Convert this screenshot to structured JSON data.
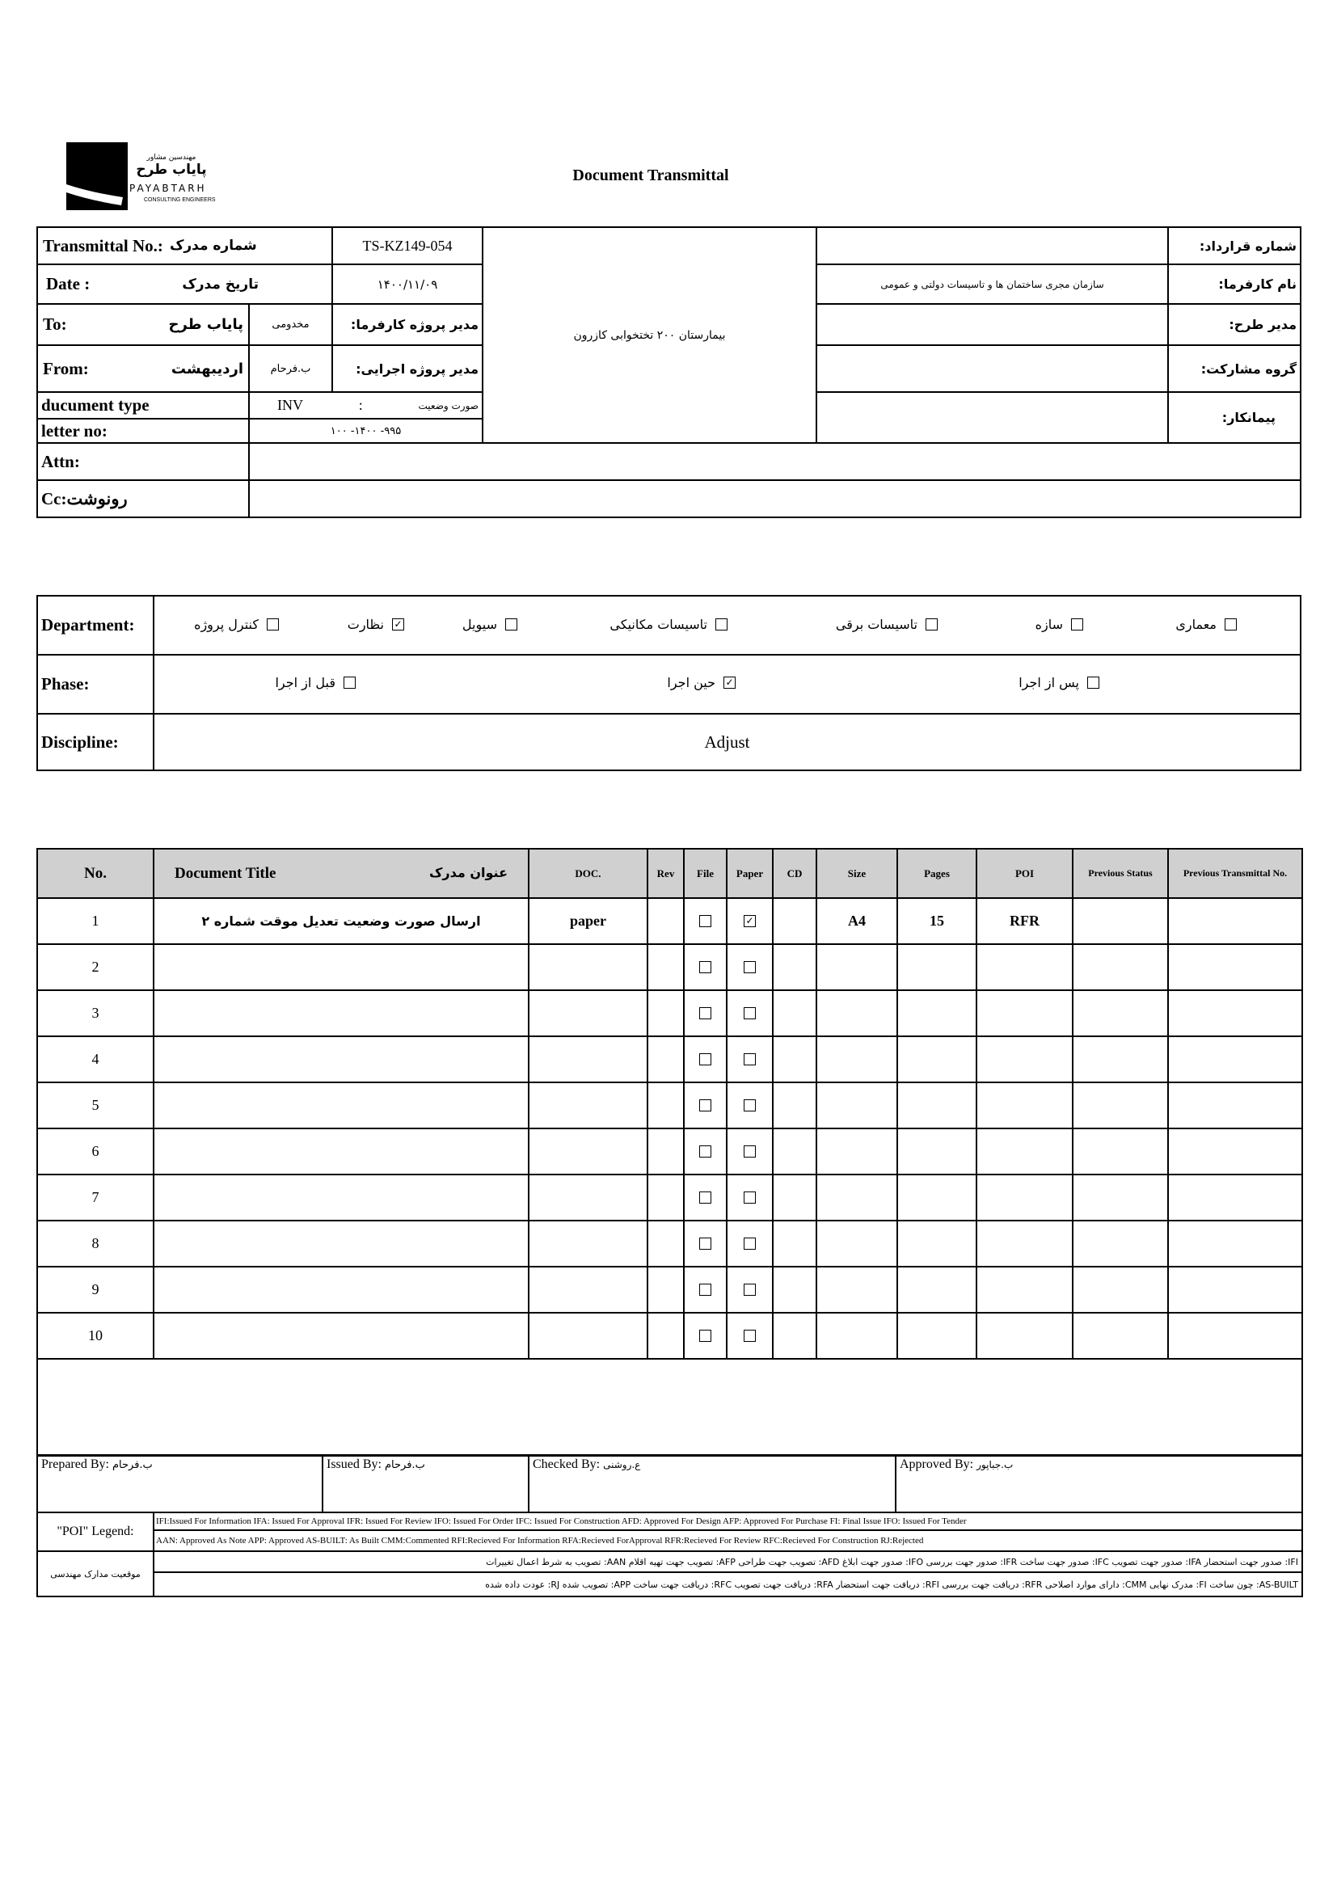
{
  "logo": {
    "company_fa": "پایاب طرح",
    "subtitle_fa": "مهندسین مشاور",
    "company_en": "PAYABTARH",
    "tagline": "CONSULTING ENGINEERS"
  },
  "title": "Document Transmittal",
  "header": {
    "transmittal_label": "Transmittal No.:",
    "transmittal_label_fa": "شماره مدرک",
    "transmittal_no": "TS-KZ149-054",
    "date_label": "Date :",
    "date_label_fa": "تاریخ مدرک",
    "date": "۱۴۰۰/۱۱/۰۹",
    "to_label": "To:",
    "to_value": "پایاب طرح",
    "client_pm_name": "مخدومی",
    "client_pm_label": "مدیر پروژه کارفرما:",
    "from_label": "From:",
    "from_value": "اردیبهشت",
    "exec_pm_name": "ب.فرحام",
    "exec_pm_label": "مدیر پروژه اجرایی:",
    "doctype_label": "ducument type",
    "doctype_code": "INV",
    "doctype_sep": ":",
    "doctype_fa": "صورت وضعیت",
    "letter_label": "letter no:",
    "letter_no": "۹۹۵- ۱۴۰۰- ۱۰۰",
    "attn_label": "Attn:",
    "cc_label": "Cc:رونوشت",
    "project": "بیمارستان ۲۰۰ تختخوابی کازرون",
    "contract_label": "شماره قرارداد:",
    "contract_value": "",
    "employer_label": "نام کارفرما:",
    "employer_value": "سازمان مجری ساختمان ها و تاسیسات دولتی و عمومی",
    "plan_manager_label": "مدیر طرح:",
    "participation_label": "گروه مشارکت:",
    "contractor_label": "پیمانکار:"
  },
  "department": {
    "label": "Department:",
    "options": [
      {
        "label": "معماری",
        "checked": false
      },
      {
        "label": "سازه",
        "checked": false
      },
      {
        "label": "تاسیسات برقی",
        "checked": false
      },
      {
        "label": "تاسیسات مکانیکی",
        "checked": false
      },
      {
        "label": "سیویل",
        "checked": false
      },
      {
        "label": "نظارت",
        "checked": true
      },
      {
        "label": "کنترل پروژه",
        "checked": false
      }
    ]
  },
  "phase": {
    "label": "Phase:",
    "options": [
      {
        "label": "پس از اجرا",
        "checked": false
      },
      {
        "label": "حین اجرا",
        "checked": true
      },
      {
        "label": "قبل از اجرا",
        "checked": false
      }
    ]
  },
  "discipline": {
    "label": "Discipline:",
    "value": "Adjust"
  },
  "docs": {
    "headers": {
      "no": "No.",
      "title": "Document Title",
      "title_fa": "عنوان مدرک",
      "doc": "DOC.",
      "rev": "Rev",
      "file": "File",
      "paper": "Paper",
      "cd": "CD",
      "size": "Size",
      "pages": "Pages",
      "poi": "POI",
      "prev_status": "Previous Status",
      "prev_transmittal": "Previous Transmittal No."
    },
    "rows": [
      {
        "no": "1",
        "title": "ارسال صورت وضعیت تعدیل موقت شماره ۲",
        "doc": "paper",
        "rev": "",
        "file": false,
        "paper": true,
        "cd": "",
        "size": "A4",
        "pages": "15",
        "poi": "RFR",
        "prev_status": "",
        "prev_transmittal": ""
      },
      {
        "no": "2",
        "file": false,
        "paper": false
      },
      {
        "no": "3",
        "file": false,
        "paper": false
      },
      {
        "no": "4",
        "file": false,
        "paper": false
      },
      {
        "no": "5",
        "file": false,
        "paper": false
      },
      {
        "no": "6",
        "file": false,
        "paper": false
      },
      {
        "no": "7",
        "file": false,
        "paper": false
      },
      {
        "no": "8",
        "file": false,
        "paper": false
      },
      {
        "no": "9",
        "file": false,
        "paper": false
      },
      {
        "no": "10",
        "file": false,
        "paper": false
      }
    ]
  },
  "signatures": {
    "prepared_label": "Prepared By:",
    "prepared": "ب.فرحام",
    "issued_label": "Issued By:",
    "issued": "ب.فرحام",
    "checked_label": "Checked By:",
    "checked": "ع.روشنی",
    "approved_label": "Approved By:",
    "approved": "ب.جباپور"
  },
  "legend": {
    "poi_label": "\"POI\" Legend:",
    "line1": "IFI:Issued For Information  IFA: Issued For Approval  IFR: Issued For Review   IFO: Issued For Order  IFC: Issued For Construction AFD: Approved For Design AFP: Approved For Purchase  FI: Final Issue  IFO: Issued For Tender",
    "line2": "AAN: Approved As Note  APP: Approved  AS-BUILT: As Built CMM:Commented  RFI:Recieved For Information   RFA:Recieved ForApproval   RFR:Recieved For Review  RFC:Recieved For Construction  RJ:Rejected",
    "fa_label": "موقعیت مدارک مهندسی",
    "fa_line1": "IFI: صدور جهت استحضار   IFA: صدور جهت تصویب   IFC: صدور جهت ساخت   IFR: صدور جهت بررسی   IFO: صدور جهت ابلاغ   AFD: تصویب جهت طراحی   AFP: تصویب جهت تهیه اقلام   AAN: تصویب به شرط اعمال تغییرات",
    "fa_line2": "AS-BUILT: چون ساخت   FI: مدرک نهایی   CMM: دارای موارد اصلاحی   RFR: دریافت جهت بررسی   RFI: دریافت جهت استحضار   RFA: دریافت جهت تصویب   RFC: دریافت جهت ساخت   APP: تصویب شده   RJ: عودت داده شده"
  }
}
